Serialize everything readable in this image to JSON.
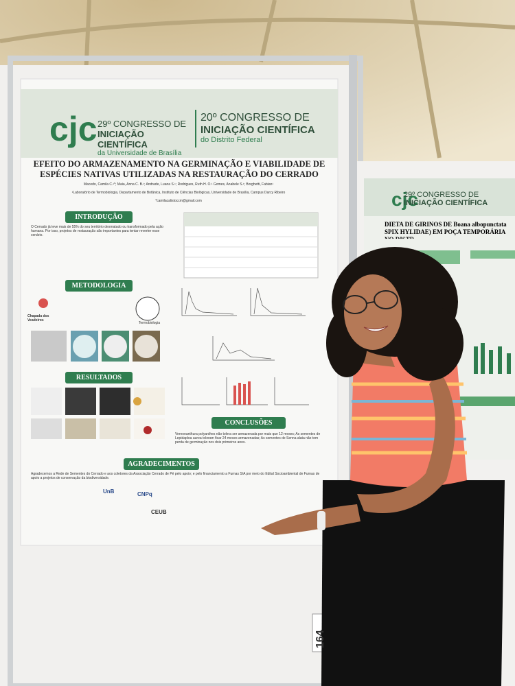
{
  "poster": {
    "header_left": {
      "line1": "29º CONGRESSO DE",
      "line2": "INICIAÇÃO CIENTÍFICA",
      "line3": "da Universidade de Brasília"
    },
    "header_right": {
      "line1": "20º CONGRESSO DE",
      "line2": "INICIAÇÃO CIENTÍFICA",
      "line3": "do Distrito Federal"
    },
    "title": "EFEITO DO ARMAZENAMENTO NA GERMINAÇÃO E VIABILIDADE DE ESPÉCIES NATIVAS UTILIZADAS NA RESTAURAÇÃO DO CERRADO",
    "authors": "Macedo, Camila C.¹*; Maia, Anna C. B.¹; Andrade, Luana S.¹; Rodrigues, Ruth H. O.¹ Gomes, Anabele S.¹; Borghetti, Fabian¹",
    "affiliation": "¹Laboratório de Termobiologia, Departamento de Botânica, Instituto de Ciências Biológicas, Universidade de Brasília, Campus Darcy Ribeiro",
    "email": "*camilacalistoccm@gmail.com",
    "sections": {
      "intro": "INTRODUÇÃO",
      "method": "METODOLOGIA",
      "results": "RESULTADOS",
      "conclusions": "CONCLUSÕES",
      "thanks": "AGRADECIMENTOS"
    },
    "method_labels": {
      "place": "Chapada dos Veadeiros",
      "lab": "Termobiologia"
    },
    "intro_text": "O Cerrado já teve mais de 55% do seu território desmatado ou transformado pela ação humana. Por isso, projetos de restauração são importantes para tentar reverter esse cenário.",
    "conclusion_text": "Vernonanthura polyanthes não tolera ser armazenada por mais que 12 meses; As sementes de Lepidaploa aurea toleram ficar 24 meses armazenadas; As sementes de Senna alata não tem perda de germinação nos dois primeiros anos.",
    "thanks_text": "Agradecemos a Rede de Sementes do Cerrado e aos coletores da Associação Cerrado de Pé pelo apoio; e pelo financiamento a Furnas S/A por meio do Edital Socioambiental de Furnas de apoio a projetos de conservação da biodiversidade.",
    "logos": [
      "UnB",
      "CNPq",
      "CEUB"
    ]
  },
  "second_poster": {
    "line1": "29º CONGRESSO DE",
    "line2": "INICIAÇÃO CIENTÍFICA",
    "title": "DIETA DE GIRINOS DE Boana albopunctata SPIX HYLIDAE) EM POÇA TEMPORÁRIA NO DISTR"
  },
  "booth_number": "164"
}
